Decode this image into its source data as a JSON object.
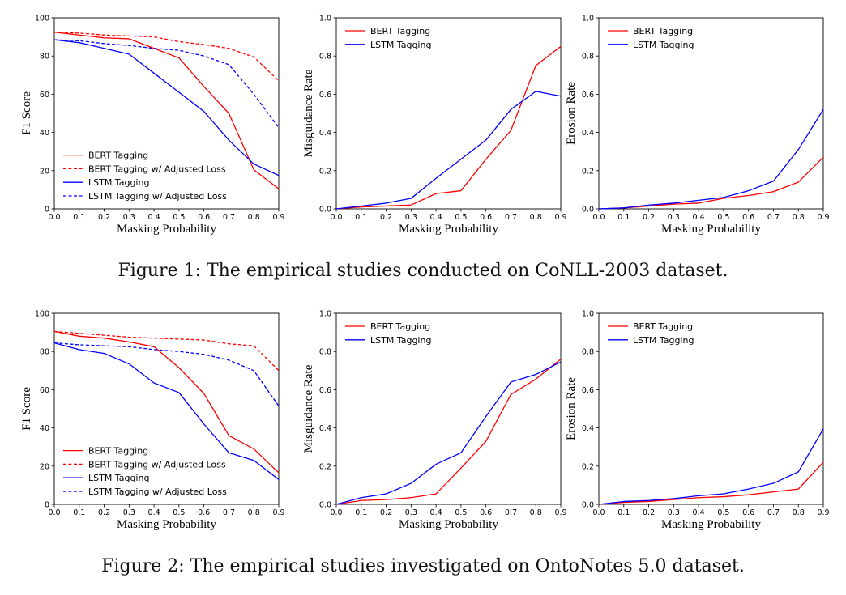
{
  "figures": [
    {
      "caption": "Figure 1: The empirical studies conducted on CoNLL-2003 dataset.",
      "charts": [
        {
          "type": "line",
          "xlabel": "Masking Probability",
          "ylabel": "F1 Score",
          "xlim": [
            0.0,
            0.9
          ],
          "ylim": [
            0,
            100
          ],
          "xticks": [
            "0.0",
            "0.1",
            "0.2",
            "0.3",
            "0.4",
            "0.5",
            "0.6",
            "0.7",
            "0.8",
            "0.9"
          ],
          "yticks": [
            "0",
            "20",
            "40",
            "60",
            "80",
            "100"
          ],
          "legend_position": "lower-left",
          "x": [
            0.0,
            0.1,
            0.2,
            0.3,
            0.4,
            0.5,
            0.6,
            0.7,
            0.8,
            0.9
          ],
          "series": [
            {
              "name": "BERT Tagging",
              "color": "#ff0000",
              "dashed": false,
              "values": [
                92.5,
                91.0,
                89.5,
                89.0,
                84.0,
                79.0,
                64.0,
                50.0,
                20.5,
                10.5
              ]
            },
            {
              "name": "BERT Tagging w/ Adjusted Loss",
              "color": "#ff0000",
              "dashed": true,
              "values": [
                92.5,
                92.0,
                91.0,
                90.5,
                90.0,
                87.5,
                86.0,
                84.0,
                79.5,
                67.0
              ]
            },
            {
              "name": "LSTM Tagging",
              "color": "#0000ff",
              "dashed": false,
              "values": [
                88.5,
                87.0,
                84.0,
                81.0,
                71.0,
                61.0,
                51.0,
                36.0,
                23.5,
                17.5
              ]
            },
            {
              "name": "LSTM Tagging w/ Adjusted Loss",
              "color": "#0000ff",
              "dashed": true,
              "values": [
                88.5,
                88.0,
                86.5,
                85.5,
                84.0,
                83.0,
                80.0,
                75.5,
                60.0,
                42.5
              ]
            }
          ]
        },
        {
          "type": "line",
          "xlabel": "Masking Probability",
          "ylabel": "Misguidance Rate",
          "xlim": [
            0.0,
            0.9
          ],
          "ylim": [
            0,
            1
          ],
          "xticks": [
            "0.0",
            "0.1",
            "0.2",
            "0.3",
            "0.4",
            "0.5",
            "0.6",
            "0.7",
            "0.8",
            "0.9"
          ],
          "yticks": [
            "0.0",
            "0.2",
            "0.4",
            "0.6",
            "0.8",
            "1.0"
          ],
          "legend_position": "upper-left",
          "x": [
            0.0,
            0.1,
            0.2,
            0.3,
            0.4,
            0.5,
            0.6,
            0.7,
            0.8,
            0.9
          ],
          "series": [
            {
              "name": "BERT Tagging",
              "color": "#ff0000",
              "dashed": false,
              "values": [
                0.0,
                0.01,
                0.015,
                0.02,
                0.08,
                0.095,
                0.26,
                0.41,
                0.75,
                0.85
              ]
            },
            {
              "name": "LSTM Tagging",
              "color": "#0000ff",
              "dashed": false,
              "values": [
                0.0,
                0.015,
                0.03,
                0.055,
                0.16,
                0.26,
                0.36,
                0.52,
                0.615,
                0.59
              ]
            }
          ]
        },
        {
          "type": "line",
          "xlabel": "Masking Probability",
          "ylabel": "Erosion Rate",
          "xlim": [
            0.0,
            0.9
          ],
          "ylim": [
            0,
            1
          ],
          "xticks": [
            "0.0",
            "0.1",
            "0.2",
            "0.3",
            "0.4",
            "0.5",
            "0.6",
            "0.7",
            "0.8",
            "0.9"
          ],
          "yticks": [
            "0.0",
            "0.2",
            "0.4",
            "0.6",
            "0.8",
            "1.0"
          ],
          "legend_position": "upper-left",
          "x": [
            0.0,
            0.1,
            0.2,
            0.3,
            0.4,
            0.5,
            0.6,
            0.7,
            0.8,
            0.9
          ],
          "series": [
            {
              "name": "BERT Tagging",
              "color": "#ff0000",
              "dashed": false,
              "values": [
                0.0,
                0.005,
                0.015,
                0.025,
                0.03,
                0.055,
                0.07,
                0.09,
                0.14,
                0.27
              ]
            },
            {
              "name": "LSTM Tagging",
              "color": "#0000ff",
              "dashed": false,
              "values": [
                0.0,
                0.005,
                0.02,
                0.03,
                0.045,
                0.06,
                0.095,
                0.145,
                0.31,
                0.52
              ]
            }
          ]
        }
      ]
    },
    {
      "caption": "Figure 2: The empirical studies investigated on OntoNotes 5.0 dataset.",
      "charts": [
        {
          "type": "line",
          "xlabel": "Masking Probability",
          "ylabel": "F1 Score",
          "xlim": [
            0.0,
            0.9
          ],
          "ylim": [
            0,
            100
          ],
          "xticks": [
            "0.0",
            "0.1",
            "0.2",
            "0.3",
            "0.4",
            "0.5",
            "0.6",
            "0.7",
            "0.8",
            "0.9"
          ],
          "yticks": [
            "0",
            "20",
            "40",
            "60",
            "80",
            "100"
          ],
          "legend_position": "lower-left",
          "x": [
            0.0,
            0.1,
            0.2,
            0.3,
            0.4,
            0.5,
            0.6,
            0.7,
            0.8,
            0.9
          ],
          "series": [
            {
              "name": "BERT Tagging",
              "color": "#ff0000",
              "dashed": false,
              "values": [
                90.5,
                88.0,
                87.0,
                85.0,
                82.5,
                71.5,
                58.0,
                36.0,
                29.0,
                16.5
              ]
            },
            {
              "name": "BERT Tagging w/ Adjusted Loss",
              "color": "#ff0000",
              "dashed": true,
              "values": [
                90.5,
                89.5,
                88.5,
                87.5,
                87.0,
                86.5,
                86.0,
                84.0,
                83.0,
                70.0
              ]
            },
            {
              "name": "LSTM Tagging",
              "color": "#0000ff",
              "dashed": false,
              "values": [
                84.5,
                81.0,
                79.0,
                73.5,
                63.5,
                58.5,
                42.0,
                27.0,
                23.0,
                13.0
              ]
            },
            {
              "name": "LSTM Tagging w/ Adjusted Loss",
              "color": "#0000ff",
              "dashed": true,
              "values": [
                84.5,
                83.5,
                83.0,
                82.5,
                81.0,
                80.0,
                78.5,
                75.5,
                70.0,
                51.5
              ]
            }
          ]
        },
        {
          "type": "line",
          "xlabel": "Masking Probability",
          "ylabel": "Misguidance Rate",
          "xlim": [
            0.0,
            0.9
          ],
          "ylim": [
            0,
            1
          ],
          "xticks": [
            "0.0",
            "0.1",
            "0.2",
            "0.3",
            "0.4",
            "0.5",
            "0.6",
            "0.7",
            "0.8",
            "0.9"
          ],
          "yticks": [
            "0.0",
            "0.2",
            "0.4",
            "0.6",
            "0.8",
            "1.0"
          ],
          "legend_position": "upper-left",
          "x": [
            0.0,
            0.1,
            0.2,
            0.3,
            0.4,
            0.5,
            0.6,
            0.7,
            0.8,
            0.9
          ],
          "series": [
            {
              "name": "BERT Tagging",
              "color": "#ff0000",
              "dashed": false,
              "values": [
                0.0,
                0.02,
                0.025,
                0.035,
                0.055,
                0.19,
                0.33,
                0.575,
                0.655,
                0.76
              ]
            },
            {
              "name": "LSTM Tagging",
              "color": "#0000ff",
              "dashed": false,
              "values": [
                0.0,
                0.035,
                0.055,
                0.11,
                0.21,
                0.27,
                0.46,
                0.64,
                0.68,
                0.745
              ]
            }
          ]
        },
        {
          "type": "line",
          "xlabel": "Masking Probability",
          "ylabel": "Erosion Rate",
          "xlim": [
            0.0,
            0.9
          ],
          "ylim": [
            0,
            1
          ],
          "xticks": [
            "0.0",
            "0.1",
            "0.2",
            "0.3",
            "0.4",
            "0.5",
            "0.6",
            "0.7",
            "0.8",
            "0.9"
          ],
          "yticks": [
            "0.0",
            "0.2",
            "0.4",
            "0.6",
            "0.8",
            "1.0"
          ],
          "legend_position": "upper-left",
          "x": [
            0.0,
            0.1,
            0.2,
            0.3,
            0.4,
            0.5,
            0.6,
            0.7,
            0.8,
            0.9
          ],
          "series": [
            {
              "name": "BERT Tagging",
              "color": "#ff0000",
              "dashed": false,
              "values": [
                0.0,
                0.01,
                0.015,
                0.025,
                0.035,
                0.04,
                0.05,
                0.065,
                0.08,
                0.22
              ]
            },
            {
              "name": "LSTM Tagging",
              "color": "#0000ff",
              "dashed": false,
              "values": [
                0.0,
                0.015,
                0.02,
                0.03,
                0.045,
                0.055,
                0.08,
                0.11,
                0.17,
                0.395
              ]
            }
          ]
        }
      ]
    }
  ]
}
